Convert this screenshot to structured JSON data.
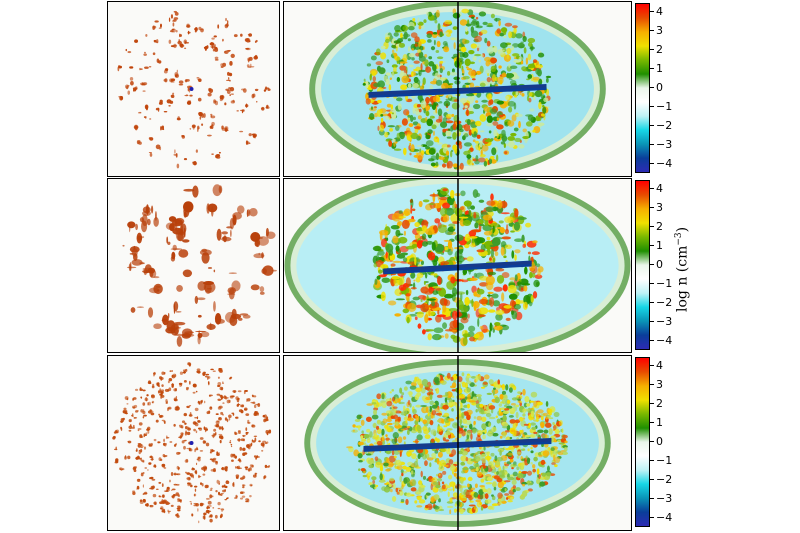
{
  "colorbar": {
    "ticks": [
      "4",
      "3",
      "2",
      "1",
      "0",
      "−1",
      "−2",
      "−3",
      "−4"
    ],
    "label_prefix": "log n (cm",
    "label_exponent": "−3",
    "label_suffix": ")",
    "colors": [
      "#ff0000",
      "#e74c00",
      "#f6b000",
      "#f0e000",
      "#7ab800",
      "#1f8f00",
      "#eaf6ea",
      "#ffffff",
      "#bff3f6",
      "#17d7e6",
      "#0a95b7",
      "#0a3e9a",
      "#2d2bb4"
    ]
  },
  "rows": [
    {
      "name": "row-1",
      "clump_color": "#c0440a",
      "center_dot": true
    },
    {
      "name": "row-2",
      "clump_color": "#b8400a",
      "center_dot": false
    },
    {
      "name": "row-3",
      "clump_color": "#c24a0c",
      "center_dot": true
    }
  ]
}
